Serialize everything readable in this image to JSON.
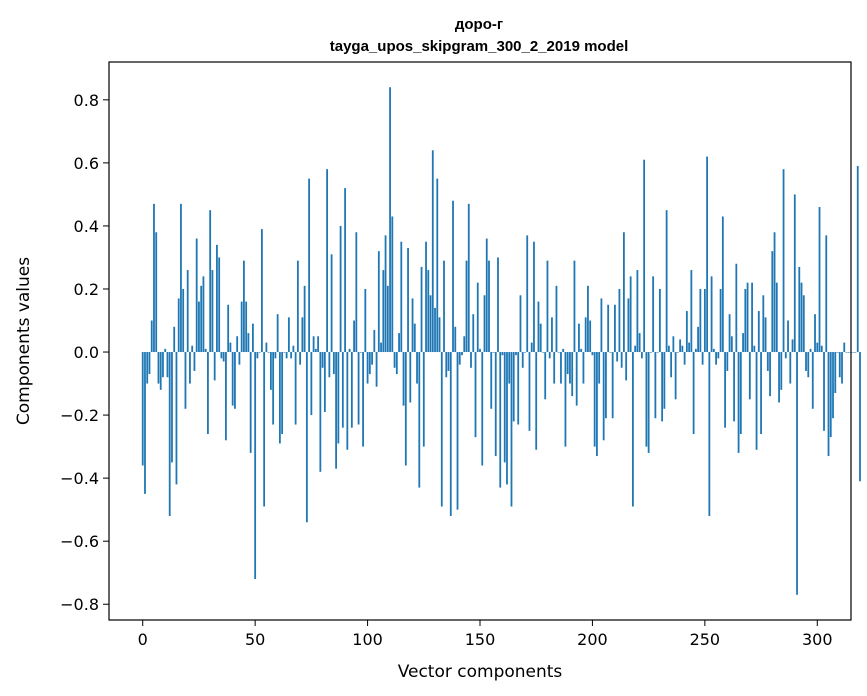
{
  "chart_data": {
    "type": "bar",
    "title_line1": "доро-г",
    "title_line2": "tayga_upos_skipgram_300_2_2019 model",
    "xlabel": "Vector components",
    "ylabel": "Components values",
    "xlim": [
      -15,
      315
    ],
    "ylim": [
      -0.85,
      0.92
    ],
    "xticks": [
      0,
      50,
      100,
      150,
      200,
      250,
      300
    ],
    "yticks": [
      -0.8,
      -0.6,
      -0.4,
      -0.2,
      0.0,
      0.2,
      0.4,
      0.6,
      0.8
    ],
    "ytick_labels": [
      "−0.8",
      "−0.6",
      "−0.4",
      "−0.2",
      "0.0",
      "0.2",
      "0.4",
      "0.6",
      "0.8"
    ],
    "bar_color": "#1f77b4",
    "x_start": 0,
    "values": [
      -0.36,
      -0.45,
      -0.1,
      -0.07,
      0.1,
      0.47,
      0.38,
      -0.1,
      -0.12,
      -0.08,
      0.01,
      -0.08,
      -0.52,
      -0.35,
      0.08,
      -0.42,
      0.17,
      0.47,
      0.2,
      -0.18,
      0.26,
      -0.1,
      0.02,
      -0.06,
      0.36,
      0.16,
      0.21,
      0.24,
      0.01,
      -0.26,
      0.45,
      0.26,
      -0.09,
      0.34,
      0.3,
      -0.02,
      -0.03,
      -0.28,
      0.15,
      0.03,
      -0.17,
      -0.18,
      0.05,
      -0.04,
      0.16,
      0.29,
      0.16,
      0.06,
      -0.32,
      0.09,
      -0.72,
      -0.02,
      0.0,
      0.39,
      -0.49,
      0.03,
      0.0,
      -0.12,
      -0.23,
      -0.02,
      0.12,
      -0.29,
      -0.26,
      0.0,
      -0.02,
      0.11,
      -0.02,
      0.02,
      -0.23,
      0.29,
      -0.04,
      0.11,
      0.21,
      -0.54,
      0.55,
      -0.2,
      0.05,
      0.01,
      0.05,
      -0.38,
      -0.05,
      -0.19,
      0.58,
      -0.08,
      0.31,
      -0.07,
      -0.37,
      -0.29,
      0.4,
      -0.24,
      0.52,
      -0.31,
      0.01,
      -0.24,
      0.1,
      0.38,
      -0.23,
      0.0,
      -0.3,
      0.2,
      -0.1,
      -0.07,
      -0.04,
      0.07,
      -0.11,
      0.32,
      0.03,
      0.26,
      0.37,
      0.21,
      0.84,
      0.43,
      -0.05,
      -0.07,
      0.06,
      0.35,
      -0.17,
      -0.36,
      0.33,
      -0.16,
      0.17,
      0.09,
      -0.1,
      -0.43,
      0.27,
      -0.3,
      0.35,
      0.26,
      0.18,
      0.64,
      0.14,
      0.55,
      0.11,
      -0.49,
      0.29,
      -0.08,
      -0.06,
      -0.52,
      0.48,
      0.08,
      -0.5,
      -0.04,
      -0.01,
      0.05,
      0.29,
      0.47,
      -0.05,
      0.12,
      -0.27,
      0.22,
      0.01,
      -0.36,
      0.18,
      0.36,
      0.29,
      -0.18,
      0.0,
      -0.33,
      0.3,
      -0.43,
      -0.01,
      -0.35,
      -0.42,
      -0.1,
      -0.49,
      -0.22,
      -0.01,
      -0.23,
      0.18,
      -0.05,
      0.0,
      0.37,
      -0.25,
      0.03,
      0.35,
      -0.31,
      0.16,
      0.09,
      0.0,
      -0.15,
      0.29,
      -0.02,
      0.11,
      -0.1,
      0.21,
      0.0,
      -0.1,
      0.01,
      -0.3,
      -0.07,
      -0.1,
      -0.14,
      0.29,
      -0.17,
      0.09,
      0.01,
      -0.1,
      0.11,
      0.21,
      0.1,
      -0.01,
      -0.3,
      -0.33,
      -0.1,
      0.17,
      -0.28,
      -0.21,
      0.15,
      0.0,
      -0.21,
      0.15,
      -0.03,
      0.2,
      -0.05,
      0.38,
      -0.09,
      0.17,
      0.24,
      -0.49,
      0.02,
      0.26,
      0.06,
      -0.02,
      0.61,
      -0.3,
      -0.32,
      0.0,
      0.24,
      -0.21,
      0.0,
      0.2,
      -0.22,
      -0.18,
      0.45,
      0.02,
      -0.08,
      0.05,
      -0.15,
      0.0,
      0.04,
      0.02,
      -0.04,
      0.13,
      0.03,
      0.26,
      -0.26,
      0.01,
      0.08,
      0.2,
      -0.04,
      0.2,
      0.62,
      -0.52,
      0.24,
      0.01,
      -0.04,
      -0.02,
      0.2,
      0.43,
      -0.24,
      -0.06,
      0.12,
      0.05,
      -0.22,
      0.28,
      -0.32,
      -0.26,
      0.06,
      0.2,
      0.22,
      -0.15,
      0.22,
      0.02,
      -0.31,
      0.13,
      -0.26,
      0.18,
      0.11,
      -0.06,
      -0.14,
      0.32,
      0.38,
      0.22,
      -0.16,
      -0.12,
      0.58,
      -0.02,
      0.1,
      -0.1,
      0.04,
      0.5,
      -0.77,
      0.27,
      0.22,
      0.18,
      -0.06,
      -0.08,
      0.01,
      -0.18,
      0.12,
      0.03,
      0.46,
      0.02,
      -0.25,
      0.37,
      -0.33,
      -0.27,
      -0.21,
      -0.13,
      0.0,
      -0.08,
      -0.1,
      0.03,
      0.0,
      0.0,
      0.0,
      0.0,
      0.0,
      0.59,
      -0.41
    ]
  }
}
